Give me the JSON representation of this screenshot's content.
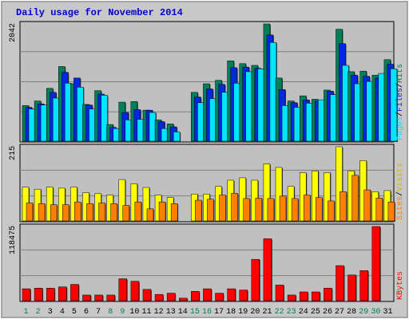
{
  "chart_data": [
    {
      "type": "bar",
      "title": "Daily usage for November 2014",
      "panel": "top",
      "ylabel_max": "2042",
      "ylim": [
        0,
        2042
      ],
      "legend": [
        "Pages",
        "Files",
        "Hits"
      ],
      "categories": [
        "1",
        "2",
        "3",
        "4",
        "5",
        "6",
        "7",
        "8",
        "9",
        "10",
        "11",
        "12",
        "13",
        "14",
        "15",
        "16",
        "17",
        "18",
        "19",
        "20",
        "21",
        "22",
        "23",
        "24",
        "25",
        "26",
        "27",
        "28",
        "29",
        "30",
        "31"
      ],
      "series": [
        {
          "name": "Hits",
          "color": "#00805a",
          "values": [
            620,
            700,
            920,
            1300,
            1000,
            640,
            880,
            290,
            680,
            690,
            540,
            370,
            300,
            0,
            850,
            1000,
            1060,
            1400,
            1350,
            1320,
            2042,
            1100,
            700,
            790,
            730,
            890,
            1950,
            1210,
            1220,
            1150,
            1420
          ]
        },
        {
          "name": "Files",
          "color": "#0028e0",
          "values": [
            590,
            650,
            850,
            1200,
            1100,
            630,
            820,
            240,
            500,
            550,
            540,
            340,
            250,
            0,
            770,
            910,
            990,
            1280,
            1290,
            1270,
            1850,
            900,
            670,
            720,
            700,
            870,
            1700,
            1150,
            1130,
            1100,
            1340
          ]
        },
        {
          "name": "Pages",
          "color": "#00e4ff",
          "values": [
            560,
            630,
            750,
            1010,
            940,
            560,
            800,
            220,
            370,
            380,
            500,
            220,
            160,
            0,
            670,
            740,
            850,
            1010,
            1210,
            1260,
            1720,
            620,
            590,
            660,
            720,
            810,
            1320,
            1000,
            1040,
            1180,
            1260
          ]
        }
      ],
      "colors": {
        "hits": "#00805a",
        "files": "#0028e0",
        "pages": "#00e4ff"
      }
    },
    {
      "type": "bar",
      "panel": "middle",
      "ylabel_max": "215",
      "ylim": [
        0,
        215
      ],
      "legend": [
        "Sites",
        "Visits"
      ],
      "series": [
        {
          "name": "Visits",
          "color": "#ffff00",
          "values": [
            98,
            92,
            98,
            95,
            98,
            82,
            79,
            75,
            120,
            108,
            97,
            75,
            68,
            0,
            78,
            78,
            100,
            118,
            125,
            118,
            165,
            155,
            100,
            140,
            145,
            140,
            215,
            145,
            175,
            85,
            88
          ]
        },
        {
          "name": "Sites",
          "color": "#ff8000",
          "values": [
            52,
            50,
            47,
            47,
            55,
            50,
            52,
            50,
            45,
            55,
            35,
            55,
            50,
            0,
            60,
            63,
            75,
            80,
            65,
            66,
            65,
            72,
            65,
            75,
            68,
            58,
            85,
            132,
            90,
            66,
            55
          ]
        }
      ],
      "colors": {
        "visits": "#ffff00",
        "sites": "#ff8000"
      }
    },
    {
      "type": "bar",
      "panel": "bottom",
      "ylabel_max": "118475",
      "ylim": [
        0,
        118475
      ],
      "legend": [
        "KBytes"
      ],
      "series": [
        {
          "name": "KBytes",
          "color": "#ff0000",
          "values": [
            19000,
            20000,
            20000,
            22000,
            26000,
            9000,
            9000,
            9000,
            35000,
            31000,
            18000,
            10000,
            12000,
            4000,
            15000,
            19000,
            12000,
            19000,
            17000,
            66000,
            99000,
            25000,
            9000,
            14000,
            14000,
            20000,
            56000,
            41000,
            48000,
            118475,
            0
          ]
        }
      ],
      "colors": {
        "kbytes": "#ff0000"
      }
    }
  ],
  "x_label_colors": {
    "weekday": "#000000",
    "weekend": "#00805a"
  },
  "weekend_days": [
    "1",
    "2",
    "8",
    "9",
    "15",
    "16",
    "22",
    "23",
    "29",
    "30"
  ],
  "legend_text": {
    "top": [
      {
        "label": "Pages",
        "color": "#00e4ff"
      },
      {
        "label": "/",
        "color": "#000000"
      },
      {
        "label": "Files",
        "color": "#0028e0"
      },
      {
        "label": "/",
        "color": "#000000"
      },
      {
        "label": "Hits",
        "color": "#00805a"
      }
    ],
    "middle": [
      {
        "label": "Sites",
        "color": "#ff8000"
      },
      {
        "label": "/",
        "color": "#000000"
      },
      {
        "label": "Visits",
        "color": "#c8b800"
      }
    ],
    "bottom": [
      {
        "label": "KBytes",
        "color": "#ff0000"
      }
    ]
  },
  "theme": {
    "background": "#c8c8c8",
    "plot_bg": "#c0c0c0",
    "grid": "#808080",
    "title_color": "#0000cc"
  }
}
